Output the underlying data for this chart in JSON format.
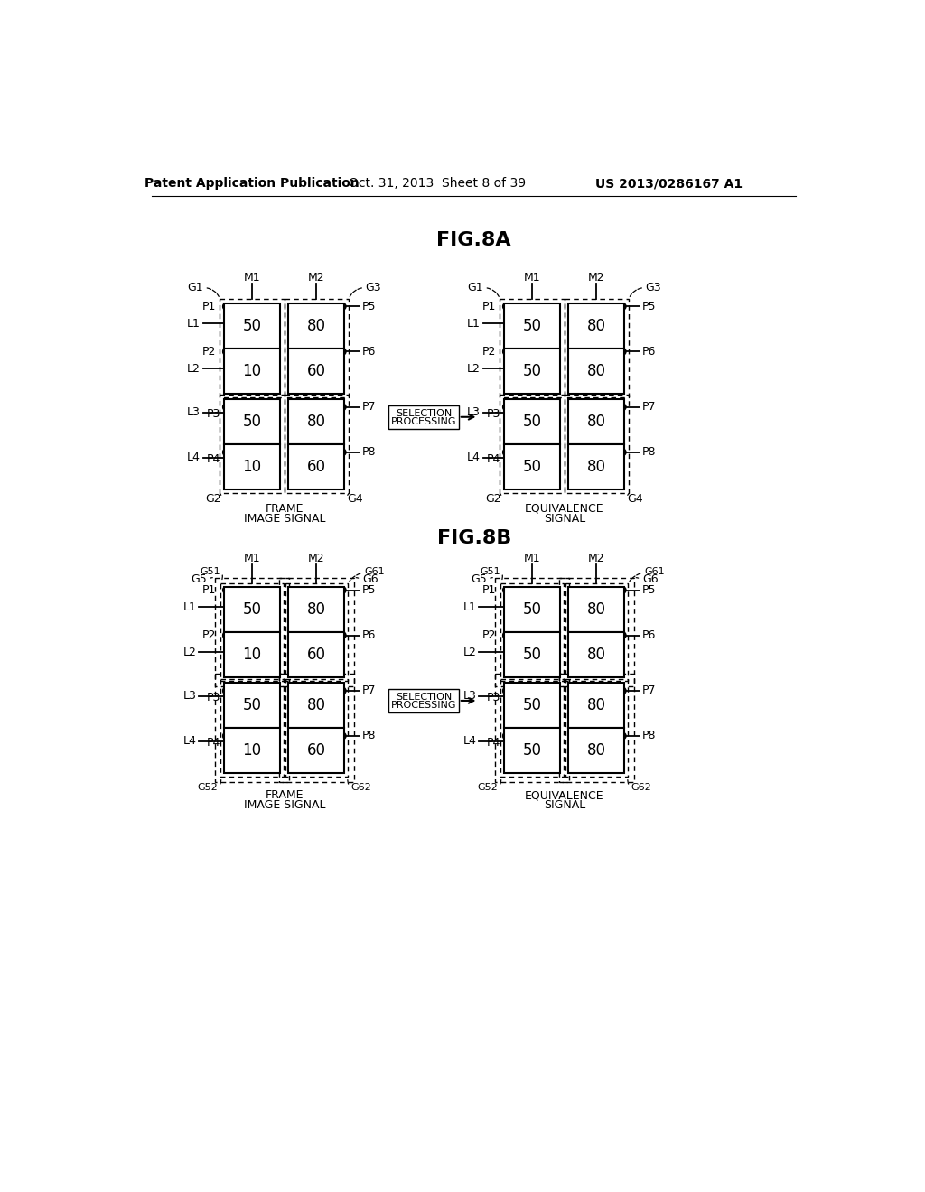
{
  "header_left": "Patent Application Publication",
  "header_mid": "Oct. 31, 2013  Sheet 8 of 39",
  "header_right": "US 2013/0286167 A1",
  "fig8a_label": "FIG.8A",
  "fig8b_label": "FIG.8B",
  "bg_color": "#ffffff"
}
